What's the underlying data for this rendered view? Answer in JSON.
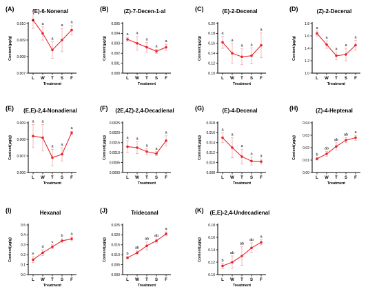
{
  "colors": {
    "line": "#e8242b",
    "error_bar": "#f0a7a9",
    "axis": "#000000",
    "background": "#ffffff"
  },
  "chart_data": [
    {
      "panel": "(A)",
      "title": "(E)-6-Nonenal",
      "type": "line",
      "categories": [
        "L",
        "W",
        "T",
        "S",
        "F"
      ],
      "values": [
        0.0102,
        0.0094,
        0.0084,
        0.009,
        0.0096
      ],
      "errors": [
        0.0005,
        0.0004,
        0.0005,
        0.0007,
        0.0003
      ],
      "sig": [
        "a",
        "a",
        "a",
        "a",
        "a"
      ],
      "ylim": [
        0.007,
        0.01
      ],
      "yticks": [
        "0.007",
        "0.008",
        "0.009",
        "0.010"
      ],
      "xlabel": "Treatment",
      "ylabel": "Content(μg/g)"
    },
    {
      "panel": "(B)",
      "title": "(Z)-7-Decen-1-al",
      "type": "line",
      "categories": [
        "L",
        "W",
        "T",
        "S",
        "F"
      ],
      "values": [
        0.0034,
        0.003,
        0.0026,
        0.0022,
        0.0026
      ],
      "errors": [
        0.0002,
        0.0007,
        0.0005,
        0.0002,
        0.0003
      ],
      "sig": [
        "a",
        "a",
        "a",
        "a",
        "a"
      ],
      "ylim": [
        0.0,
        0.005
      ],
      "yticks": [
        "0.000",
        "0.001",
        "0.002",
        "0.003",
        "0.004",
        "0.005"
      ],
      "xlabel": "Treatment",
      "ylabel": "Content(μg/g)"
    },
    {
      "panel": "(C)",
      "title": "(E)-2-Decenal",
      "type": "line",
      "categories": [
        "L",
        "W",
        "T",
        "S",
        "F"
      ],
      "values": [
        0.162,
        0.14,
        0.133,
        0.135,
        0.156
      ],
      "errors": [
        0.012,
        0.02,
        0.016,
        0.016,
        0.025
      ],
      "sig": [
        "a",
        "a",
        "a",
        "a",
        "a"
      ],
      "ylim": [
        0.1,
        0.2
      ],
      "yticks": [
        "0.10",
        "0.12",
        "0.14",
        "0.16",
        "0.18",
        "0.20"
      ],
      "xlabel": "Treatment",
      "ylabel": "Content(μg/g)"
    },
    {
      "panel": "(D)",
      "title": "(Z)-2-Decenal",
      "type": "line",
      "categories": [
        "L",
        "W",
        "T",
        "S",
        "F"
      ],
      "values": [
        1.64,
        1.46,
        1.28,
        1.3,
        1.45
      ],
      "errors": [
        0.04,
        0.06,
        0.06,
        0.1,
        0.08
      ],
      "sig": [
        "a",
        "a",
        "a",
        "a",
        "a"
      ],
      "ylim": [
        1.0,
        1.8
      ],
      "yticks": [
        "1.0",
        "1.2",
        "1.4",
        "1.6",
        "1.8"
      ],
      "xlabel": "Treatment",
      "ylabel": "Content(μg/g)"
    },
    {
      "panel": "(E)",
      "title": "(E,E)-2,4-Nonadienal",
      "type": "line",
      "categories": [
        "L",
        "W",
        "T",
        "S",
        "F"
      ],
      "values": [
        0.0082,
        0.0081,
        0.0069,
        0.0071,
        0.0084
      ],
      "errors": [
        0.0007,
        0.0008,
        0.0005,
        0.0004,
        0.0001
      ],
      "sig": [
        "a",
        "a",
        "a",
        "a",
        "a"
      ],
      "ylim": [
        0.006,
        0.009
      ],
      "yticks": [
        "0.006",
        "0.007",
        "0.008",
        "0.009"
      ],
      "xlabel": "Treatment",
      "ylabel": "Content(μg/g)"
    },
    {
      "panel": "(F)",
      "title": "(2E,4Z)-2,4-Decadienal",
      "type": "line",
      "categories": [
        "L",
        "W",
        "T",
        "S",
        "F"
      ],
      "values": [
        0.0013,
        0.00125,
        0.00105,
        0.00095,
        0.0016
      ],
      "errors": [
        0.0003,
        0.0003,
        0.00015,
        0.0001,
        0.00025
      ],
      "sig": [
        "a",
        "a",
        "a",
        "a",
        "a"
      ],
      "ylim": [
        0.0,
        0.0025
      ],
      "yticks": [
        "0.0000",
        "0.0005",
        "0.0010",
        "0.0015",
        "0.0020",
        "0.0025"
      ],
      "xlabel": "Treatment",
      "ylabel": "Content(μg/g)"
    },
    {
      "panel": "(G)",
      "title": "(E)-4-Decenal",
      "type": "line",
      "categories": [
        "L",
        "W",
        "T",
        "S",
        "F"
      ],
      "values": [
        0.015,
        0.013,
        0.0112,
        0.0103,
        0.0102
      ],
      "errors": [
        0.001,
        0.002,
        0.0015,
        0.0008,
        0.0005
      ],
      "sig": [
        "a",
        "a",
        "a",
        "a",
        "a"
      ],
      "ylim": [
        0.008,
        0.018
      ],
      "yticks": [
        "0.008",
        "0.010",
        "0.012",
        "0.014",
        "0.016",
        "0.018"
      ],
      "xlabel": "Treatment",
      "ylabel": "Content(μg/g)"
    },
    {
      "panel": "(H)",
      "title": "(Z)-4-Heptenal",
      "type": "line",
      "categories": [
        "L",
        "W",
        "T",
        "S",
        "F"
      ],
      "values": [
        0.011,
        0.015,
        0.021,
        0.026,
        0.028
      ],
      "errors": [
        0.001,
        0.002,
        0.003,
        0.002,
        0.002
      ],
      "sig": [
        "b",
        "ab",
        "ab",
        "ab",
        "a"
      ],
      "ylim": [
        0.0,
        0.04
      ],
      "yticks": [
        "0.00",
        "0.01",
        "0.02",
        "0.03",
        "0.04"
      ],
      "xlabel": "Treatment",
      "ylabel": "Content(μg/g)"
    },
    {
      "panel": "(I)",
      "title": "Hexanal",
      "type": "line",
      "categories": [
        "L",
        "W",
        "T",
        "S",
        "F"
      ],
      "values": [
        0.15,
        0.22,
        0.28,
        0.34,
        0.36
      ],
      "errors": [
        0.03,
        0.03,
        0.02,
        0.02,
        0.02
      ],
      "sig": [
        "e",
        "d",
        "c",
        "b",
        "a"
      ],
      "ylim": [
        0.0,
        0.5
      ],
      "yticks": [
        "0.0",
        "0.1",
        "0.2",
        "0.3",
        "0.4",
        "0.5"
      ],
      "xlabel": "Treatment",
      "ylabel": "Content(μg/g)"
    },
    {
      "panel": "(J)",
      "title": "Tridecanal",
      "type": "line",
      "categories": [
        "L",
        "W",
        "T",
        "S",
        "F"
      ],
      "values": [
        0.0085,
        0.011,
        0.0145,
        0.017,
        0.0205
      ],
      "errors": [
        0.0005,
        0.001,
        0.002,
        0.001,
        0.001
      ],
      "sig": [
        "b",
        "ab",
        "ab",
        "ab",
        "a"
      ],
      "ylim": [
        0.0,
        0.025
      ],
      "yticks": [
        "0.000",
        "0.005",
        "0.010",
        "0.015",
        "0.020",
        "0.025"
      ],
      "xlabel": "Treatment",
      "ylabel": "Content(μg/g)"
    },
    {
      "panel": "(K)",
      "title": "(E,E)-2,4-Undecadienal",
      "type": "line",
      "categories": [
        "L",
        "W",
        "T",
        "S",
        "F"
      ],
      "values": [
        0.114,
        0.12,
        0.13,
        0.143,
        0.152
      ],
      "errors": [
        0.004,
        0.01,
        0.015,
        0.008,
        0.004
      ],
      "sig": [
        "b",
        "ab",
        "ab",
        "ab",
        "a"
      ],
      "ylim": [
        0.1,
        0.18
      ],
      "yticks": [
        "0.10",
        "0.12",
        "0.14",
        "0.16",
        "0.18"
      ],
      "xlabel": "Treatment",
      "ylabel": "Content(μg/g)"
    }
  ]
}
